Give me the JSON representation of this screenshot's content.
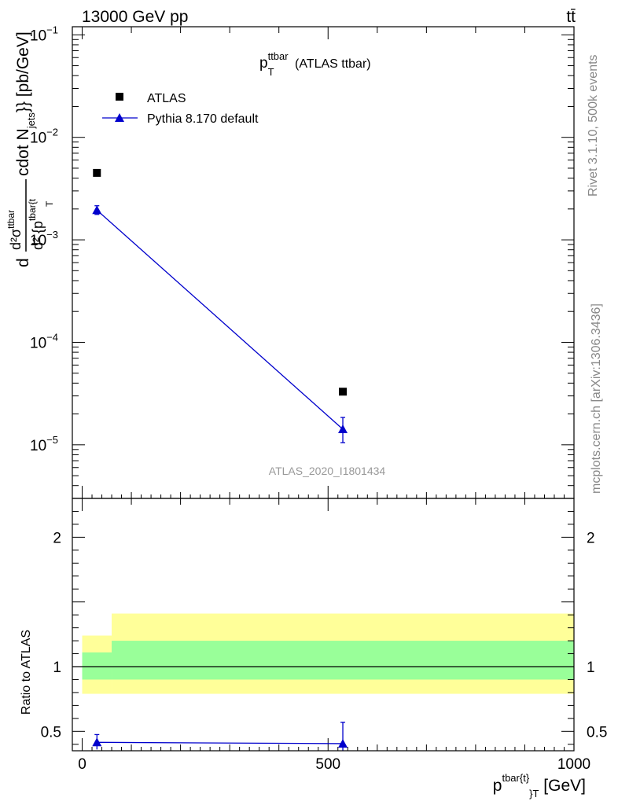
{
  "header": {
    "energy_label": "13000 GeV pp",
    "process_label": "tt̄"
  },
  "side_labels": {
    "rivet": "Rivet 3.1.10,  500k events",
    "mcplots": "mcplots.cern.ch [arXiv:1306.3436]"
  },
  "chart_data": [
    {
      "type": "scatter",
      "panel": "main",
      "title_main": "p",
      "title_sup": "ttbar",
      "title_sub": "T",
      "title_rest": " (ATLAS ttbar)",
      "watermark": "ATLAS_2020_I1801434",
      "ylabel": "d d²σ^{ttbar} / d² {p_T^{tbar{t}} cdot N_{jets}}} [pb/GeV]",
      "ylabel_parts": {
        "d": "d",
        "num_d2": "d²",
        "num_sigma": "σ",
        "num_sup": "ttbar",
        "den": "d² {p",
        "den_sup": "tbar{t",
        "den_sub": "T",
        "rest": "cdot N",
        "rest_sub": "jets",
        "rest_end": "}} [pb/GeV]"
      },
      "yscale": "log",
      "ylim": [
        3e-06,
        0.12
      ],
      "xlim": [
        -20,
        1000
      ],
      "y_ticks": [
        {
          "value": 0.1,
          "base": "10",
          "exp": "−1"
        },
        {
          "value": 0.01,
          "base": "10",
          "exp": "−2"
        },
        {
          "value": 0.001,
          "base": "10",
          "exp": "−3"
        },
        {
          "value": 0.0001,
          "base": "10",
          "exp": "−4"
        },
        {
          "value": 1e-05,
          "base": "10",
          "exp": "−5"
        }
      ],
      "legend_position": "top-left",
      "series": [
        {
          "name": "ATLAS",
          "marker": "square",
          "color": "#000000",
          "points": [
            {
              "x": 30,
              "y": 0.0045
            },
            {
              "x": 530,
              "y": 3.3e-05
            }
          ]
        },
        {
          "name": "Pythia 8.170 default",
          "marker": "triangle",
          "color": "#0000cc",
          "points": [
            {
              "x": 30,
              "y": 0.00195,
              "ylo": 0.00177,
              "yhi": 0.00215
            },
            {
              "x": 530,
              "y": 1.42e-05,
              "ylo": 1.05e-05,
              "yhi": 1.85e-05
            }
          ]
        }
      ]
    },
    {
      "type": "line",
      "panel": "ratio",
      "ylabel": "Ratio to ATLAS",
      "xlabel_main": "p",
      "xlabel_sup": "tbar{t}",
      "xlabel_sub": "}",
      "xlabel_sub2": "T",
      "xlabel_rest": " [GeV]",
      "ylim": [
        0.35,
        2.3
      ],
      "xlim": [
        -20,
        1000
      ],
      "x_ticks": [
        0,
        500,
        1000
      ],
      "y_ticks": [
        0.5,
        1,
        2
      ],
      "bands": [
        {
          "name": "total-uncertainty",
          "color": "#ffff99",
          "bins": [
            {
              "x0": 0,
              "x1": 60,
              "lo": 0.79,
              "hi": 1.24
            },
            {
              "x0": 60,
              "x1": 1000,
              "lo": 0.79,
              "hi": 1.41
            }
          ]
        },
        {
          "name": "stat-uncertainty",
          "color": "#99ff99",
          "bins": [
            {
              "x0": 0,
              "x1": 60,
              "lo": 0.9,
              "hi": 1.11
            },
            {
              "x0": 60,
              "x1": 1000,
              "lo": 0.9,
              "hi": 1.2
            }
          ]
        }
      ],
      "reference_line": 1,
      "series": [
        {
          "name": "Pythia 8.170 default",
          "color": "#0000cc",
          "points": [
            {
              "x": 30,
              "y": 0.415,
              "ylo": 0.36,
              "yhi": 0.475
            },
            {
              "x": 530,
              "y": 0.405,
              "ylo": 0.3,
              "yhi": 0.57
            }
          ]
        }
      ]
    }
  ]
}
